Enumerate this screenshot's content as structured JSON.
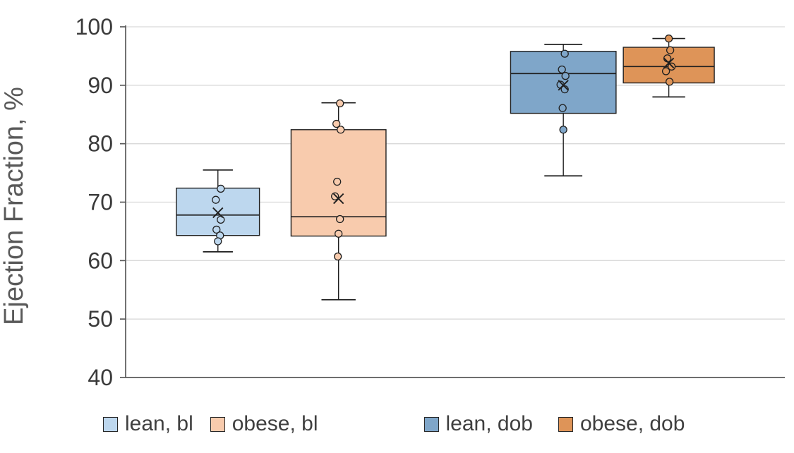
{
  "chart_data": {
    "type": "boxplot",
    "title": "",
    "xlabel": "",
    "ylabel": "Ejection Fraction, %",
    "ylim": [
      40,
      100
    ],
    "yticks": [
      40,
      50,
      60,
      70,
      80,
      90,
      100
    ],
    "grid": true,
    "legend_position": "bottom",
    "colors": {
      "lean_bl": "#BDD7EE",
      "obese_bl": "#F8CBAD",
      "lean_dob": "#7FA6C9",
      "obese_dob": "#DE9458",
      "box_border": "#1F1F1F",
      "gridline": "#D9D9D9",
      "axis": "#595959",
      "tick_text": "#3A3A3A",
      "axis_title_text": "#595959"
    },
    "series": [
      {
        "name": "lean, bl",
        "color": "#BDD7EE",
        "center_frac": 0.14,
        "width_frac": 0.126,
        "whisker_low": 61.5,
        "q1": 64.3,
        "median": 67.8,
        "q3": 72.4,
        "whisker_high": 75.5,
        "mean": 68.2,
        "points": [
          72.3,
          70.4,
          67.0,
          65.3,
          64.3,
          63.3
        ],
        "point_dx": [
          4,
          -3,
          4,
          -2,
          3,
          0
        ]
      },
      {
        "name": "obese, bl",
        "color": "#F8CBAD",
        "center_frac": 0.323,
        "width_frac": 0.144,
        "whisker_low": 53.3,
        "q1": 64.2,
        "median": 67.5,
        "q3": 82.4,
        "whisker_high": 87.0,
        "mean": 70.6,
        "points": [
          86.9,
          83.4,
          82.4,
          73.5,
          71.0,
          67.1,
          64.6,
          60.7
        ],
        "point_dx": [
          2,
          -3,
          3,
          -2,
          -5,
          2,
          0,
          -1
        ]
      },
      {
        "name": "lean, dob",
        "color": "#7FA6C9",
        "center_frac": 0.664,
        "width_frac": 0.16,
        "whisker_low": 74.5,
        "q1": 85.2,
        "median": 92.0,
        "q3": 95.8,
        "whisker_high": 97.0,
        "mean": 90.0,
        "points": [
          95.4,
          92.7,
          91.6,
          90.1,
          89.3,
          86.1,
          82.4
        ],
        "point_dx": [
          2,
          -2,
          3,
          -4,
          2,
          -1,
          0
        ]
      },
      {
        "name": "obese, dob",
        "color": "#DE9458",
        "center_frac": 0.824,
        "width_frac": 0.138,
        "whisker_low": 88.0,
        "q1": 90.4,
        "median": 93.2,
        "q3": 96.5,
        "whisker_high": 98.0,
        "mean": 93.8,
        "points": [
          98.0,
          96.0,
          94.6,
          93.2,
          92.4,
          90.6
        ],
        "point_dx": [
          0,
          2,
          -2,
          4,
          -4,
          1
        ]
      }
    ]
  }
}
